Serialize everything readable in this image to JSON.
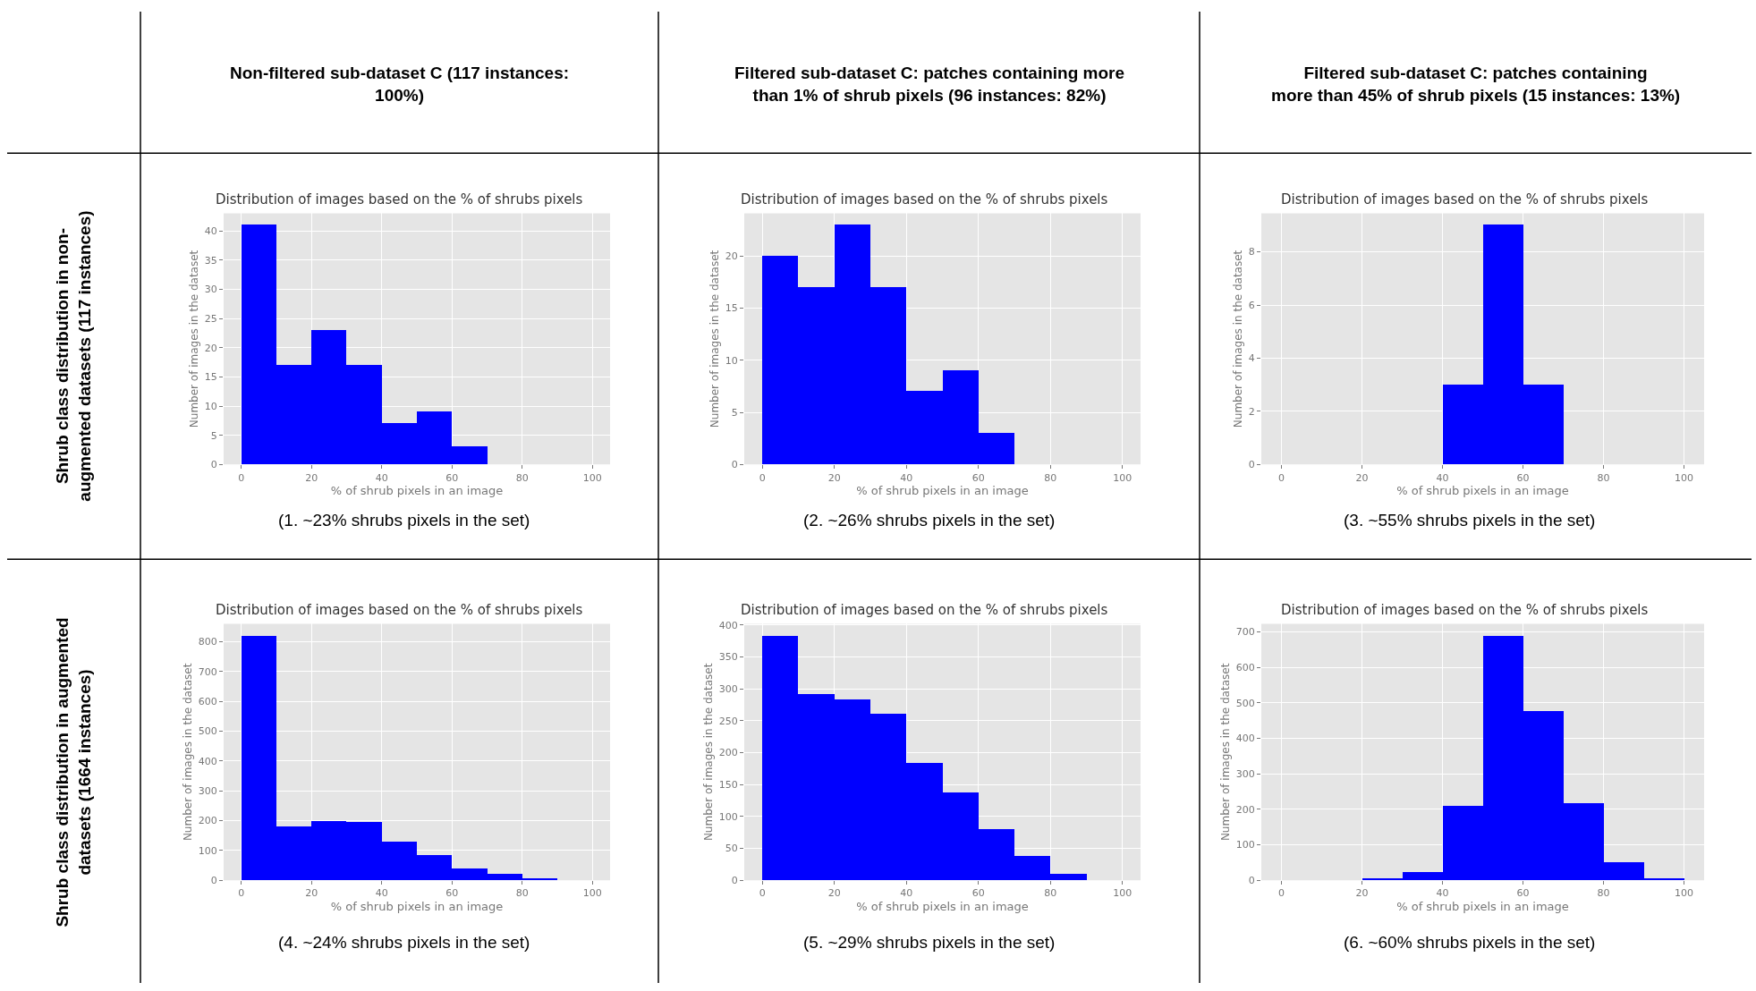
{
  "chart_data": [
    {
      "type": "histogram",
      "title": "Distribution of images based on the % of shrubs pixels",
      "xlabel": "% of shrub pixels in an image",
      "ylabel": "Number of images in the dataset",
      "bins": [
        0,
        10,
        20,
        30,
        40,
        50,
        60,
        70
      ],
      "values": [
        41,
        17,
        23,
        17,
        7,
        9,
        3
      ],
      "color": "#0000ff",
      "xlim": [
        -5,
        105
      ],
      "xticks": [
        0,
        20,
        40,
        60,
        80,
        100
      ],
      "ylim": [
        0,
        43
      ],
      "yticks": [
        0,
        5,
        10,
        15,
        20,
        25,
        30,
        35,
        40
      ],
      "grid": true,
      "annotations": [
        "(1. ~23% shrubs pixels in the set)",
        "Non-filtered sub-dataset C (117 instances:\n100%)",
        "Shrub class distribution in non-\naugmented datasets (117 instances)"
      ]
    },
    {
      "type": "histogram",
      "title": "Distribution of images based on the % of shrubs pixels",
      "xlabel": "% of shrub pixels in an image",
      "ylabel": "Number of images in the dataset",
      "bins": [
        0,
        10,
        20,
        30,
        40,
        50,
        60,
        70
      ],
      "values": [
        20,
        17,
        23,
        17,
        7,
        9,
        3
      ],
      "color": "#0000ff",
      "xlim": [
        -5,
        105
      ],
      "xticks": [
        0,
        20,
        40,
        60,
        80,
        100
      ],
      "ylim": [
        0,
        24.1
      ],
      "yticks": [
        0,
        5,
        10,
        15,
        20
      ],
      "grid": true,
      "annotations": [
        "(2. ~26% shrubs pixels in the set)",
        "Filtered sub-dataset C: patches containing more\nthan 1% of shrub pixels (96 instances: 82%)"
      ]
    },
    {
      "type": "histogram",
      "title": "Distribution of images based on the % of shrubs pixels",
      "xlabel": "% of shrub pixels in an image",
      "ylabel": "Number of images in the dataset",
      "bins": [
        40,
        50,
        60,
        70
      ],
      "values": [
        3,
        9,
        3
      ],
      "color": "#0000ff",
      "xlim": [
        -5,
        105
      ],
      "xticks": [
        0,
        20,
        40,
        60,
        80,
        100
      ],
      "ylim": [
        0,
        9.45
      ],
      "yticks": [
        0,
        2,
        4,
        6,
        8
      ],
      "grid": true,
      "annotations": [
        "(3. ~55% shrubs pixels in the set)",
        "Filtered sub-dataset C: patches containing\nmore than 45% of shrub pixels (15 instances: 13%)"
      ]
    },
    {
      "type": "histogram",
      "title": "Distribution of images based on the % of shrubs pixels",
      "xlabel": "% of shrub pixels in an image",
      "ylabel": "Number of images in the dataset",
      "bins": [
        0,
        10,
        20,
        30,
        40,
        50,
        60,
        70,
        80,
        90
      ],
      "values": [
        818,
        178,
        197,
        193,
        130,
        85,
        38,
        22,
        3
      ],
      "color": "#0000ff",
      "xlim": [
        -5,
        105
      ],
      "xticks": [
        0,
        20,
        40,
        60,
        80,
        100
      ],
      "ylim": [
        0,
        860
      ],
      "yticks": [
        0,
        100,
        200,
        300,
        400,
        500,
        600,
        700,
        800
      ],
      "grid": true,
      "annotations": [
        "(4. ~24% shrubs pixels in the set)",
        "Shrub class distribution in augmented\ndatasets (1664 instances)"
      ]
    },
    {
      "type": "histogram",
      "title": "Distribution of images based on the % of shrubs pixels",
      "xlabel": "% of shrub pixels in an image",
      "ylabel": "Number of images in the dataset",
      "bins": [
        0,
        10,
        20,
        30,
        40,
        50,
        60,
        70,
        80,
        90
      ],
      "values": [
        383,
        291,
        283,
        261,
        183,
        137,
        79,
        37,
        9
      ],
      "color": "#0000ff",
      "xlim": [
        -5,
        105
      ],
      "xticks": [
        0,
        20,
        40,
        60,
        80,
        100
      ],
      "ylim": [
        0,
        402
      ],
      "yticks": [
        0,
        50,
        100,
        150,
        200,
        250,
        300,
        350,
        400
      ],
      "grid": true,
      "annotations": [
        "(5. ~29% shrubs pixels in the set)"
      ]
    },
    {
      "type": "histogram",
      "title": "Distribution of images based on the % of shrubs pixels",
      "xlabel": "% of shrub pixels in an image",
      "ylabel": "Number of images in the dataset",
      "bins": [
        20,
        30,
        40,
        50,
        60,
        70,
        80,
        90,
        100
      ],
      "values": [
        3,
        22,
        210,
        688,
        476,
        217,
        51,
        3
      ],
      "color": "#0000ff",
      "xlim": [
        -5,
        105
      ],
      "xticks": [
        0,
        20,
        40,
        60,
        80,
        100
      ],
      "ylim": [
        0,
        723
      ],
      "yticks": [
        0,
        100,
        200,
        300,
        400,
        500,
        600,
        700
      ],
      "grid": true,
      "annotations": [
        "(6. ~60% shrubs pixels in the set)"
      ]
    }
  ]
}
